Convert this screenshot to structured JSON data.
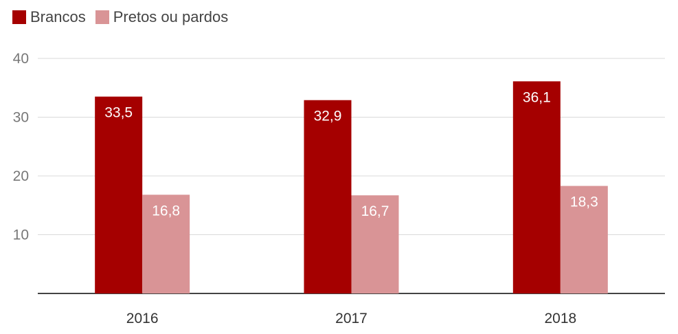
{
  "legend": {
    "items": [
      {
        "label": "Brancos",
        "color": "#A50000"
      },
      {
        "label": "Pretos ou pardos",
        "color": "#D99496"
      }
    ]
  },
  "chart_data": {
    "type": "bar",
    "categories": [
      "2016",
      "2017",
      "2018"
    ],
    "series": [
      {
        "name": "Brancos",
        "values": [
          33.5,
          32.9,
          36.1
        ],
        "labels": [
          "33,5",
          "32,9",
          "36,1"
        ],
        "color": "#A50000"
      },
      {
        "name": "Pretos ou pardos",
        "values": [
          16.8,
          16.7,
          18.3
        ],
        "labels": [
          "16,8",
          "16,7",
          "18,3"
        ],
        "color": "#D99496"
      }
    ],
    "yticks": [
      10,
      20,
      30,
      40
    ],
    "ylim": [
      0,
      40
    ],
    "grid": true,
    "legend_position": "top-left",
    "title": "",
    "xlabel": "",
    "ylabel": ""
  }
}
